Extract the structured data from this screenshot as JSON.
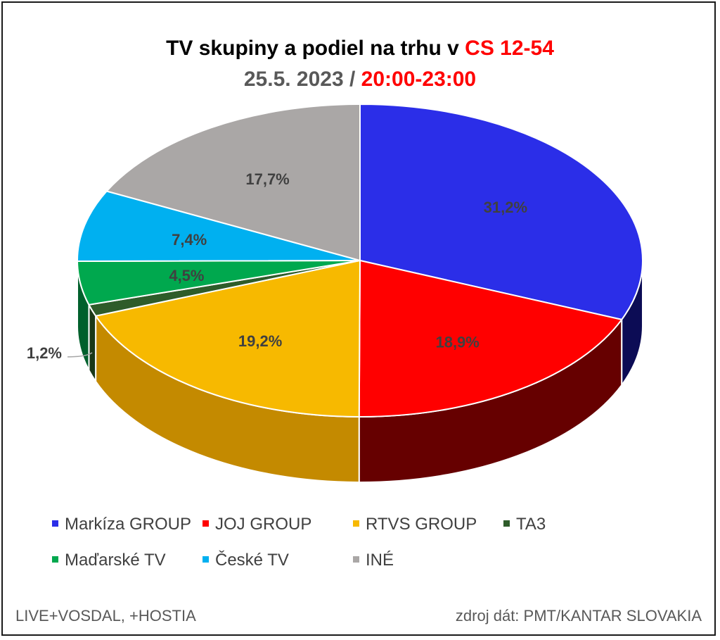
{
  "header": {
    "title_main": "TV skupiny a podiel na trhu v ",
    "title_accent": "CS 12-54",
    "subtitle_date": "25.5. 2023",
    "subtitle_sep": " / ",
    "subtitle_time": "20:00-23:00"
  },
  "chart_data": {
    "type": "pie",
    "style": "3d",
    "title": "TV skupiny a podiel na trhu v CS 12-54",
    "subtitle": "25.5. 2023 / 20:00-23:00",
    "legend_position": "bottom",
    "slices": [
      {
        "name": "Markíza GROUP",
        "value": 31.2,
        "label": "31,2%",
        "color": "#2b2ee8",
        "side_color": "#0c0c55"
      },
      {
        "name": "JOJ GROUP",
        "value": 18.9,
        "label": "18,9%",
        "color": "#ff0000",
        "side_color": "#660000"
      },
      {
        "name": "RTVS GROUP",
        "value": 19.2,
        "label": "19,2%",
        "color": "#f7b900",
        "side_color": "#c48a00"
      },
      {
        "name": "TA3",
        "value": 1.2,
        "label": "1,2%",
        "color": "#2e5c2a",
        "side_color": "#1a3818"
      },
      {
        "name": "Maďarské  TV",
        "value": 4.5,
        "label": "4,5%",
        "color": "#00a84e",
        "side_color": "#00602c"
      },
      {
        "name": "České  TV",
        "value": 7.4,
        "label": "7,4%",
        "color": "#00b0f0",
        "side_color": "#006a90"
      },
      {
        "name": "INÉ",
        "value": 17.7,
        "label": "17,7%",
        "color": "#aaa7a6",
        "side_color": "#6a6868"
      }
    ]
  },
  "footer": {
    "left": "LIVE+VOSDAL, +HOSTIA",
    "right": "zdroj dát: PMT/KANTAR SLOVAKIA"
  }
}
